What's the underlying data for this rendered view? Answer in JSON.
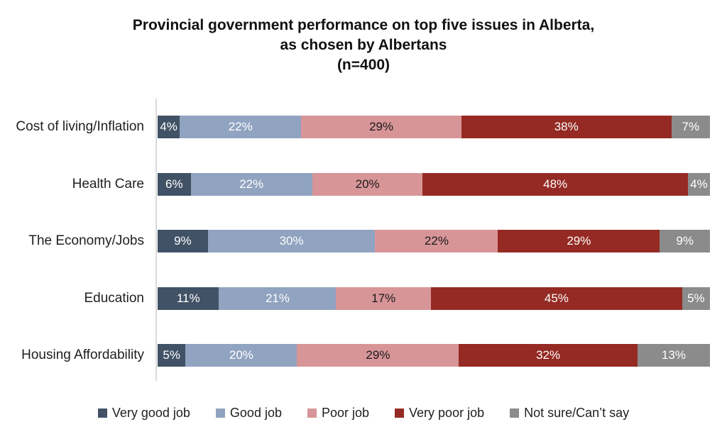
{
  "title": {
    "lines": [
      "Provincial government performance on top five issues in Alberta,",
      "as chosen by Albertans",
      "(n=400)"
    ]
  },
  "chart_data": {
    "type": "bar",
    "orientation": "horizontal",
    "stacked": true,
    "unit": "%",
    "x_range": [
      0,
      100
    ],
    "grid": false,
    "legend_position": "bottom",
    "title": "Provincial government performance on top five issues in Alberta, as chosen by Albertans (n=400)",
    "categories": [
      "Cost of living/Inflation",
      "Health Care",
      "The Economy/Jobs",
      "Education",
      "Housing Affordability"
    ],
    "series": [
      {
        "name": "Very good job",
        "color": "#415266",
        "label_color": "#ffffff",
        "values": [
          4,
          6,
          9,
          11,
          5
        ]
      },
      {
        "name": "Good job",
        "color": "#90A3C0",
        "label_color": "#ffffff",
        "values": [
          22,
          22,
          30,
          21,
          20
        ]
      },
      {
        "name": "Poor job",
        "color": "#D89598",
        "label_color": "#1a1a1a",
        "values": [
          29,
          20,
          22,
          17,
          29
        ]
      },
      {
        "name": "Very poor job",
        "color": "#942A23",
        "label_color": "#ffffff",
        "values": [
          38,
          48,
          29,
          45,
          32
        ]
      },
      {
        "name": "Not sure/Can’t say",
        "color": "#8B8B8B",
        "label_color": "#ffffff",
        "values": [
          7,
          4,
          9,
          5,
          13
        ]
      }
    ]
  }
}
